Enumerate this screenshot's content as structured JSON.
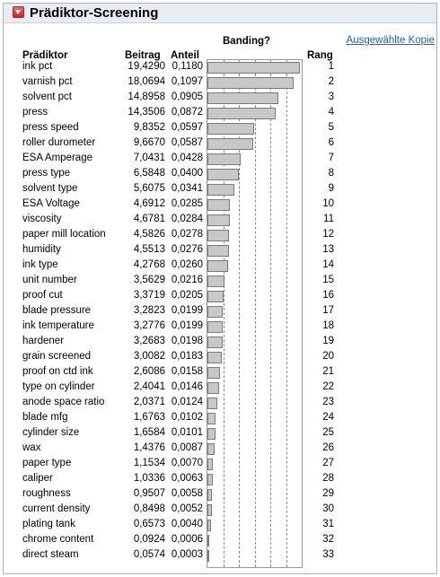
{
  "report": {
    "title": "Prädiktor-Screening",
    "copy_link": "Ausgewählte Kopie",
    "toggle_icon": "disclosure-triangle-icon"
  },
  "columns": {
    "predictor": "Prädiktor",
    "contribution": "Beitrag",
    "portion": "Anteil",
    "banding": "Banding?",
    "rank": "Rang"
  },
  "rows": [
    {
      "name": "ink pct",
      "beitrag": "19,4290",
      "anteil": "0,1180",
      "share": 0.118,
      "rang": "1"
    },
    {
      "name": "varnish pct",
      "beitrag": "18,0694",
      "anteil": "0,1097",
      "share": 0.1097,
      "rang": "2"
    },
    {
      "name": "solvent pct",
      "beitrag": "14,8958",
      "anteil": "0,0905",
      "share": 0.0905,
      "rang": "3"
    },
    {
      "name": "press",
      "beitrag": "14,3506",
      "anteil": "0,0872",
      "share": 0.0872,
      "rang": "4"
    },
    {
      "name": "press speed",
      "beitrag": "9,8352",
      "anteil": "0,0597",
      "share": 0.0597,
      "rang": "5"
    },
    {
      "name": "roller durometer",
      "beitrag": "9,6670",
      "anteil": "0,0587",
      "share": 0.0587,
      "rang": "6"
    },
    {
      "name": "ESA Amperage",
      "beitrag": "7,0431",
      "anteil": "0,0428",
      "share": 0.0428,
      "rang": "7"
    },
    {
      "name": "press type",
      "beitrag": "6,5848",
      "anteil": "0,0400",
      "share": 0.04,
      "rang": "8"
    },
    {
      "name": "solvent type",
      "beitrag": "5,6075",
      "anteil": "0,0341",
      "share": 0.0341,
      "rang": "9"
    },
    {
      "name": "ESA Voltage",
      "beitrag": "4,6912",
      "anteil": "0,0285",
      "share": 0.0285,
      "rang": "10"
    },
    {
      "name": "viscosity",
      "beitrag": "4,6781",
      "anteil": "0,0284",
      "share": 0.0284,
      "rang": "11"
    },
    {
      "name": "paper mill location",
      "beitrag": "4,5826",
      "anteil": "0,0278",
      "share": 0.0278,
      "rang": "12"
    },
    {
      "name": "humidity",
      "beitrag": "4,5513",
      "anteil": "0,0276",
      "share": 0.0276,
      "rang": "13"
    },
    {
      "name": "ink type",
      "beitrag": "4,2768",
      "anteil": "0,0260",
      "share": 0.026,
      "rang": "14"
    },
    {
      "name": "unit number",
      "beitrag": "3,5629",
      "anteil": "0,0216",
      "share": 0.0216,
      "rang": "15"
    },
    {
      "name": "proof cut",
      "beitrag": "3,3719",
      "anteil": "0,0205",
      "share": 0.0205,
      "rang": "16"
    },
    {
      "name": "blade pressure",
      "beitrag": "3,2823",
      "anteil": "0,0199",
      "share": 0.0199,
      "rang": "17"
    },
    {
      "name": "ink temperature",
      "beitrag": "3,2776",
      "anteil": "0,0199",
      "share": 0.0199,
      "rang": "18"
    },
    {
      "name": "hardener",
      "beitrag": "3,2683",
      "anteil": "0,0198",
      "share": 0.0198,
      "rang": "19"
    },
    {
      "name": "grain screened",
      "beitrag": "3,0082",
      "anteil": "0,0183",
      "share": 0.0183,
      "rang": "20"
    },
    {
      "name": "proof on ctd ink",
      "beitrag": "2,6086",
      "anteil": "0,0158",
      "share": 0.0158,
      "rang": "21"
    },
    {
      "name": "type on cylinder",
      "beitrag": "2,4041",
      "anteil": "0,0146",
      "share": 0.0146,
      "rang": "22"
    },
    {
      "name": "anode space ratio",
      "beitrag": "2,0371",
      "anteil": "0,0124",
      "share": 0.0124,
      "rang": "23"
    },
    {
      "name": "blade mfg",
      "beitrag": "1,6763",
      "anteil": "0,0102",
      "share": 0.0102,
      "rang": "24"
    },
    {
      "name": "cylinder size",
      "beitrag": "1,6584",
      "anteil": "0,0101",
      "share": 0.0101,
      "rang": "25"
    },
    {
      "name": "wax",
      "beitrag": "1,4376",
      "anteil": "0,0087",
      "share": 0.0087,
      "rang": "26"
    },
    {
      "name": "paper type",
      "beitrag": "1,1534",
      "anteil": "0,0070",
      "share": 0.007,
      "rang": "27"
    },
    {
      "name": "caliper",
      "beitrag": "1,0336",
      "anteil": "0,0063",
      "share": 0.0063,
      "rang": "28"
    },
    {
      "name": "roughness",
      "beitrag": "0,9507",
      "anteil": "0,0058",
      "share": 0.0058,
      "rang": "29"
    },
    {
      "name": "current density",
      "beitrag": "0,8498",
      "anteil": "0,0052",
      "share": 0.0052,
      "rang": "30"
    },
    {
      "name": "plating tank",
      "beitrag": "0,6573",
      "anteil": "0,0040",
      "share": 0.004,
      "rang": "31"
    },
    {
      "name": "chrome content",
      "beitrag": "0,0924",
      "anteil": "0,0006",
      "share": 0.0006,
      "rang": "32"
    },
    {
      "name": "direct steam",
      "beitrag": "0,0574",
      "anteil": "0,0003",
      "share": 0.0003,
      "rang": "33"
    }
  ],
  "chart_data": {
    "type": "bar",
    "orientation": "horizontal",
    "xlim": [
      0,
      0.12
    ],
    "reference_lines": [
      0.02,
      0.04,
      0.06,
      0.08,
      0.1
    ],
    "grid": true,
    "bar_color": "#c8c8c8"
  }
}
